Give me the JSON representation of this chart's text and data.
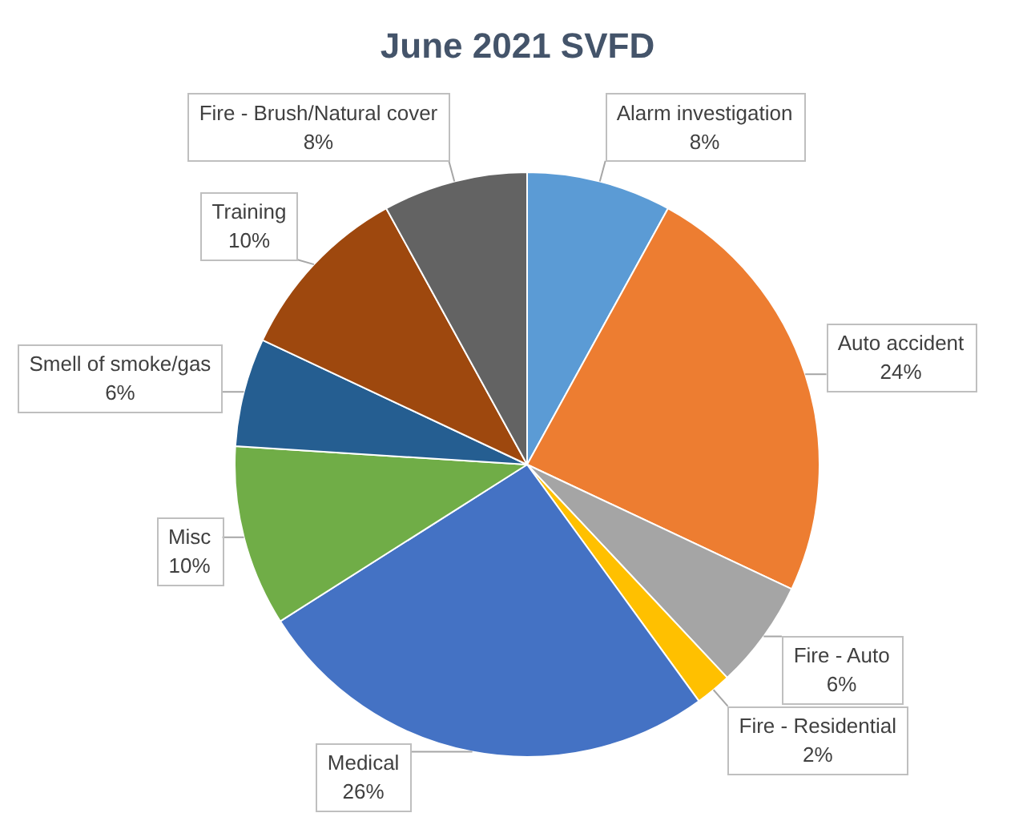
{
  "chart_data": {
    "type": "pie",
    "title": "June 2021 SVFD",
    "categories": [
      "Alarm investigation",
      "Auto accident",
      "Fire - Auto",
      "Fire - Residential",
      "Medical",
      "Misc",
      "Smell of smoke/gas",
      "Training",
      "Fire - Brush/Natural cover"
    ],
    "values": [
      8,
      24,
      6,
      2,
      26,
      10,
      6,
      10,
      8
    ],
    "colors": [
      "#5b9bd5",
      "#ed7d31",
      "#a5a5a5",
      "#ffc000",
      "#4472c4",
      "#70ad47",
      "#255e91",
      "#9e480e",
      "#636363"
    ],
    "value_labels": [
      "8%",
      "24%",
      "6%",
      "2%",
      "26%",
      "10%",
      "6%",
      "10%",
      "8%"
    ]
  }
}
